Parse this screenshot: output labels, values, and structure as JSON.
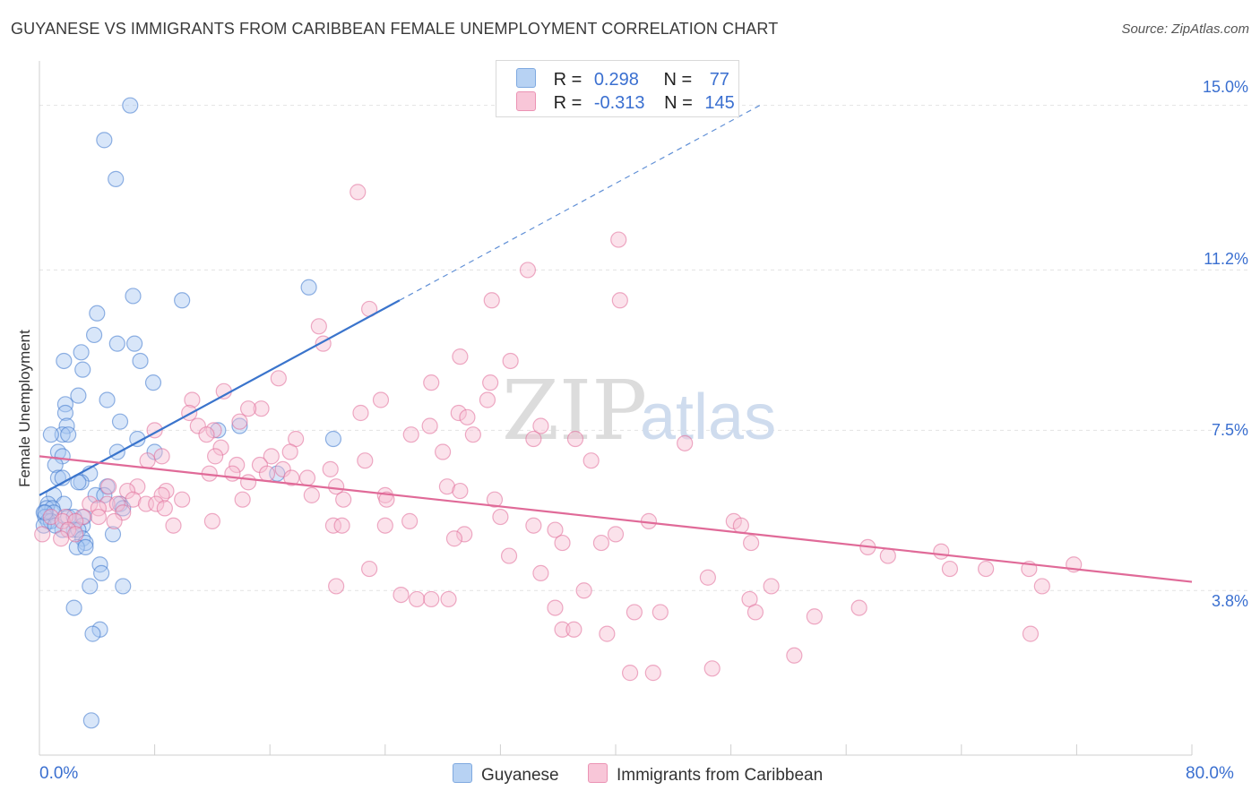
{
  "title": "GUYANESE VS IMMIGRANTS FROM CARIBBEAN FEMALE UNEMPLOYMENT CORRELATION CHART",
  "source": "Source: ZipAtlas.com",
  "watermark": {
    "zip": "ZIP",
    "atlas": "atlas"
  },
  "legend": {
    "rows": [
      {
        "r_label": "R =",
        "r_value": "0.298",
        "n_label": "N =",
        "n_value": "77",
        "color": "#7fb0ec"
      },
      {
        "r_label": "R =",
        "r_value": "-0.313",
        "n_label": "N =",
        "n_value": "145",
        "color": "#f29ab8"
      }
    ]
  },
  "chart_data": {
    "type": "scatter",
    "title": "GUYANESE VS IMMIGRANTS FROM CARIBBEAN FEMALE UNEMPLOYMENT CORRELATION CHART",
    "xlabel": "",
    "ylabel": "Female Unemployment",
    "xlim": [
      0,
      80
    ],
    "ylim": [
      0,
      15.8
    ],
    "x_tick_labels": [
      "0.0%",
      "80.0%"
    ],
    "y_tick_labels": [
      "15.0%",
      "11.2%",
      "7.5%",
      "3.8%"
    ],
    "y_ticks": [
      15.0,
      11.2,
      7.5,
      3.8
    ],
    "grid": true,
    "legend_position": "top-center",
    "series": [
      {
        "name": "Guyanese",
        "color": "#3a74cc",
        "fill": "#a9c8f1",
        "trend": {
          "x0": 0,
          "y0": 6.0,
          "x1": 25,
          "y1": 10.5,
          "dashed_to_x": 50,
          "dashed_to_y": 15.0
        },
        "points": [
          [
            6.3,
            15.0
          ],
          [
            4.5,
            14.2
          ],
          [
            5.3,
            13.3
          ],
          [
            18.7,
            10.8
          ],
          [
            6.5,
            10.6
          ],
          [
            9.9,
            10.5
          ],
          [
            4.0,
            10.2
          ],
          [
            3.8,
            9.7
          ],
          [
            5.4,
            9.5
          ],
          [
            6.6,
            9.5
          ],
          [
            2.9,
            9.3
          ],
          [
            1.7,
            9.1
          ],
          [
            7.0,
            9.1
          ],
          [
            3.0,
            8.9
          ],
          [
            7.9,
            8.6
          ],
          [
            2.7,
            8.3
          ],
          [
            4.7,
            8.2
          ],
          [
            1.8,
            8.1
          ],
          [
            1.8,
            7.9
          ],
          [
            5.6,
            7.7
          ],
          [
            13.9,
            7.6
          ],
          [
            12.4,
            7.5
          ],
          [
            1.9,
            7.6
          ],
          [
            1.6,
            7.4
          ],
          [
            2.0,
            7.4
          ],
          [
            0.8,
            7.4
          ],
          [
            20.4,
            7.3
          ],
          [
            6.8,
            7.3
          ],
          [
            1.3,
            7.0
          ],
          [
            5.4,
            7.0
          ],
          [
            8.0,
            7.0
          ],
          [
            1.6,
            6.9
          ],
          [
            1.1,
            6.7
          ],
          [
            3.5,
            6.5
          ],
          [
            16.5,
            6.5
          ],
          [
            1.3,
            6.4
          ],
          [
            1.6,
            6.4
          ],
          [
            2.9,
            6.3
          ],
          [
            2.7,
            6.3
          ],
          [
            4.7,
            6.2
          ],
          [
            3.9,
            6.0
          ],
          [
            4.5,
            6.0
          ],
          [
            1.0,
            6.0
          ],
          [
            0.6,
            5.8
          ],
          [
            1.7,
            5.8
          ],
          [
            5.6,
            5.8
          ],
          [
            0.5,
            5.7
          ],
          [
            0.9,
            5.7
          ],
          [
            5.8,
            5.7
          ],
          [
            0.3,
            5.6
          ],
          [
            1.0,
            5.6
          ],
          [
            0.4,
            5.5
          ],
          [
            2.0,
            5.5
          ],
          [
            2.4,
            5.5
          ],
          [
            3.1,
            5.5
          ],
          [
            0.6,
            5.4
          ],
          [
            0.8,
            5.4
          ],
          [
            0.3,
            5.3
          ],
          [
            3.0,
            5.3
          ],
          [
            2.4,
            5.2
          ],
          [
            1.6,
            5.2
          ],
          [
            2.7,
            5.2
          ],
          [
            5.1,
            5.1
          ],
          [
            3.0,
            5.0
          ],
          [
            3.2,
            4.9
          ],
          [
            2.6,
            4.8
          ],
          [
            3.2,
            4.8
          ],
          [
            4.2,
            4.4
          ],
          [
            4.3,
            4.2
          ],
          [
            3.5,
            3.9
          ],
          [
            5.8,
            3.9
          ],
          [
            2.4,
            3.4
          ],
          [
            4.2,
            2.9
          ],
          [
            3.7,
            2.8
          ],
          [
            3.6,
            0.8
          ],
          [
            0.4,
            5.6
          ],
          [
            1.1,
            5.3
          ]
        ]
      },
      {
        "name": "Immigrants from Caribbean",
        "color": "#e06a98",
        "fill": "#f6bfd3",
        "trend": {
          "x0": 0,
          "y0": 6.9,
          "x1": 80,
          "y1": 4.0
        },
        "points": [
          [
            22.1,
            13.0
          ],
          [
            40.2,
            11.9
          ],
          [
            33.9,
            11.2
          ],
          [
            31.4,
            10.5
          ],
          [
            40.3,
            10.5
          ],
          [
            22.9,
            10.3
          ],
          [
            19.4,
            9.9
          ],
          [
            19.7,
            9.5
          ],
          [
            29.2,
            9.2
          ],
          [
            32.7,
            9.1
          ],
          [
            16.6,
            8.7
          ],
          [
            27.2,
            8.6
          ],
          [
            31.3,
            8.6
          ],
          [
            12.8,
            8.4
          ],
          [
            10.6,
            8.2
          ],
          [
            23.7,
            8.2
          ],
          [
            31.1,
            8.2
          ],
          [
            15.4,
            8.0
          ],
          [
            14.5,
            8.0
          ],
          [
            22.3,
            7.9
          ],
          [
            29.1,
            7.9
          ],
          [
            10.4,
            7.9
          ],
          [
            29.7,
            7.8
          ],
          [
            13.9,
            7.7
          ],
          [
            11.0,
            7.6
          ],
          [
            27.1,
            7.6
          ],
          [
            34.8,
            7.6
          ],
          [
            8.0,
            7.5
          ],
          [
            12.1,
            7.5
          ],
          [
            25.8,
            7.4
          ],
          [
            30.1,
            7.4
          ],
          [
            11.6,
            7.4
          ],
          [
            17.8,
            7.3
          ],
          [
            37.2,
            7.3
          ],
          [
            34.3,
            7.3
          ],
          [
            44.8,
            7.2
          ],
          [
            12.6,
            7.1
          ],
          [
            28.0,
            7.0
          ],
          [
            17.4,
            7.0
          ],
          [
            8.5,
            6.9
          ],
          [
            16.1,
            6.9
          ],
          [
            12.2,
            6.9
          ],
          [
            38.3,
            6.8
          ],
          [
            22.6,
            6.8
          ],
          [
            7.5,
            6.8
          ],
          [
            13.7,
            6.7
          ],
          [
            15.3,
            6.7
          ],
          [
            16.9,
            6.6
          ],
          [
            20.2,
            6.6
          ],
          [
            11.8,
            6.5
          ],
          [
            13.4,
            6.5
          ],
          [
            15.8,
            6.5
          ],
          [
            17.5,
            6.4
          ],
          [
            18.6,
            6.4
          ],
          [
            14.5,
            6.3
          ],
          [
            20.6,
            6.2
          ],
          [
            6.8,
            6.2
          ],
          [
            4.8,
            6.2
          ],
          [
            6.1,
            6.1
          ],
          [
            8.8,
            6.1
          ],
          [
            28.3,
            6.2
          ],
          [
            29.2,
            6.1
          ],
          [
            8.5,
            6.0
          ],
          [
            18.9,
            6.0
          ],
          [
            24.0,
            6.0
          ],
          [
            31.6,
            5.9
          ],
          [
            6.5,
            5.9
          ],
          [
            9.9,
            5.9
          ],
          [
            14.1,
            5.9
          ],
          [
            21.1,
            5.9
          ],
          [
            24.1,
            5.9
          ],
          [
            7.4,
            5.8
          ],
          [
            8.1,
            5.8
          ],
          [
            4.7,
            5.8
          ],
          [
            3.5,
            5.8
          ],
          [
            5.4,
            5.8
          ],
          [
            8.7,
            5.7
          ],
          [
            4.1,
            5.7
          ],
          [
            5.8,
            5.6
          ],
          [
            4.1,
            5.5
          ],
          [
            3.0,
            5.5
          ],
          [
            1.8,
            5.5
          ],
          [
            0.8,
            5.5
          ],
          [
            1.6,
            5.4
          ],
          [
            2.5,
            5.4
          ],
          [
            5.2,
            5.4
          ],
          [
            12.0,
            5.4
          ],
          [
            25.7,
            5.4
          ],
          [
            32.0,
            5.5
          ],
          [
            42.3,
            5.4
          ],
          [
            48.2,
            5.4
          ],
          [
            48.7,
            5.3
          ],
          [
            20.4,
            5.3
          ],
          [
            21.0,
            5.3
          ],
          [
            24.0,
            5.3
          ],
          [
            34.3,
            5.3
          ],
          [
            35.8,
            5.2
          ],
          [
            9.3,
            5.3
          ],
          [
            2.0,
            5.2
          ],
          [
            2.5,
            5.1
          ],
          [
            0.2,
            5.1
          ],
          [
            1.5,
            5.0
          ],
          [
            29.5,
            5.1
          ],
          [
            28.8,
            5.0
          ],
          [
            40.0,
            5.1
          ],
          [
            36.3,
            4.9
          ],
          [
            39.0,
            4.9
          ],
          [
            49.4,
            4.9
          ],
          [
            57.5,
            4.8
          ],
          [
            32.6,
            4.6
          ],
          [
            34.8,
            4.2
          ],
          [
            22.9,
            4.3
          ],
          [
            62.6,
            4.7
          ],
          [
            58.9,
            4.6
          ],
          [
            63.2,
            4.3
          ],
          [
            65.7,
            4.3
          ],
          [
            68.7,
            4.3
          ],
          [
            71.8,
            4.4
          ],
          [
            46.4,
            4.1
          ],
          [
            50.8,
            3.9
          ],
          [
            37.8,
            3.8
          ],
          [
            20.6,
            3.9
          ],
          [
            25.1,
            3.7
          ],
          [
            26.2,
            3.6
          ],
          [
            27.2,
            3.6
          ],
          [
            28.4,
            3.6
          ],
          [
            49.3,
            3.6
          ],
          [
            35.8,
            3.4
          ],
          [
            41.3,
            3.3
          ],
          [
            43.1,
            3.3
          ],
          [
            49.7,
            3.3
          ],
          [
            53.8,
            3.2
          ],
          [
            56.9,
            3.4
          ],
          [
            69.6,
            3.9
          ],
          [
            36.3,
            2.9
          ],
          [
            37.1,
            2.9
          ],
          [
            39.4,
            2.8
          ],
          [
            68.8,
            2.8
          ],
          [
            52.4,
            2.3
          ],
          [
            41.0,
            1.9
          ],
          [
            42.6,
            1.9
          ],
          [
            46.7,
            2.0
          ]
        ]
      }
    ]
  },
  "axis_labels": {
    "x_left": "0.0%",
    "x_right": "80.0%"
  }
}
